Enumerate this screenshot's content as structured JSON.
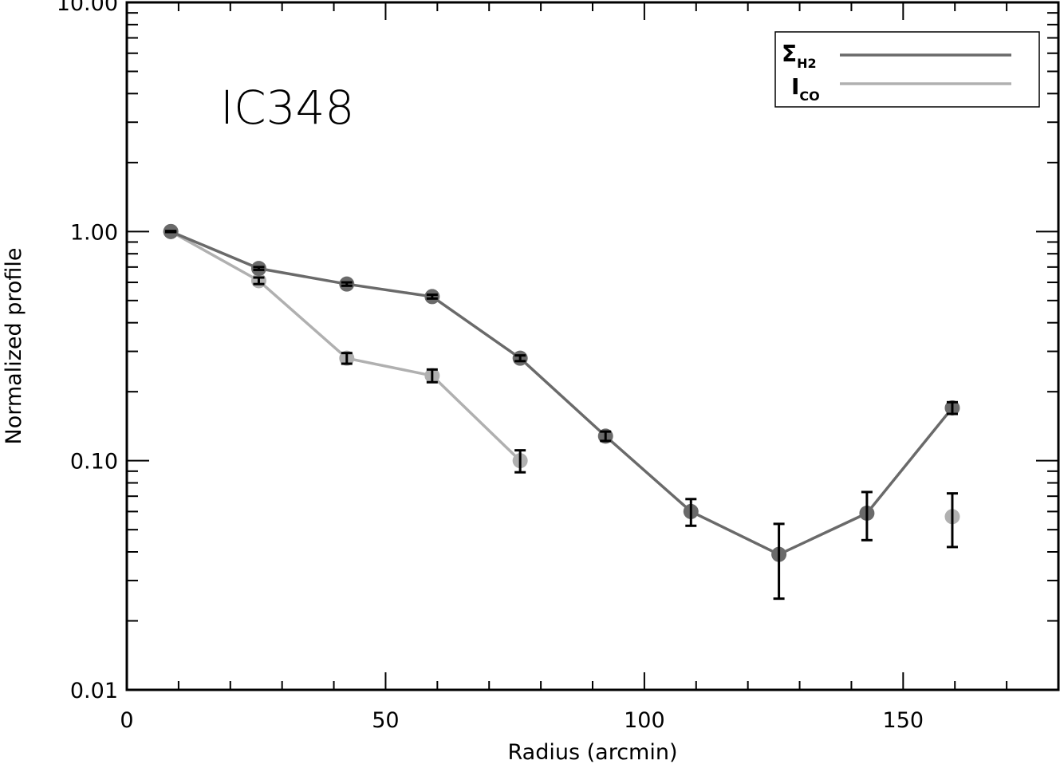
{
  "chart_data": {
    "type": "line",
    "annotation": "IC348",
    "xlabel": "Radius (arcmin)",
    "ylabel": "Normalized profile",
    "xlim": [
      0,
      180
    ],
    "ylim": [
      0.01,
      10
    ],
    "yscale": "log",
    "x_ticks": [
      0,
      50,
      100,
      150
    ],
    "x_tick_labels": [
      "0",
      "50",
      "100",
      "150"
    ],
    "y_ticks": [
      0.01,
      0.1,
      1,
      10
    ],
    "y_tick_labels": [
      "0.01",
      "0.10",
      "1.00",
      "10.00"
    ],
    "grid": false,
    "legend_position": "top-right",
    "series": [
      {
        "name": "Σ_H2",
        "legend_main": "Σ",
        "legend_sub": "H2",
        "color": "#6a6a6a",
        "x": [
          8.5,
          25.5,
          42.5,
          59,
          76,
          92.5,
          109,
          126,
          143,
          159.5
        ],
        "y": [
          1.0,
          0.69,
          0.59,
          0.52,
          0.28,
          0.128,
          0.06,
          0.039,
          0.059,
          0.17
        ],
        "err": [
          0.005,
          0.01,
          0.01,
          0.01,
          0.008,
          0.006,
          0.008,
          0.014,
          0.014,
          0.01
        ],
        "line_x": [
          8.5,
          25.5,
          42.5,
          59,
          76,
          92.5,
          109,
          126,
          143,
          159.5
        ]
      },
      {
        "name": "I_CO",
        "legend_main": "I",
        "legend_sub": "CO",
        "color": "#b0b0b0",
        "x": [
          8.5,
          25.5,
          42.5,
          59,
          76,
          159.5
        ],
        "y": [
          1.0,
          0.61,
          0.28,
          0.235,
          0.1,
          0.057
        ],
        "err": [
          0.005,
          0.02,
          0.015,
          0.015,
          0.011,
          0.015
        ],
        "line_x": [
          8.5,
          25.5,
          42.5,
          59,
          76
        ]
      }
    ]
  }
}
